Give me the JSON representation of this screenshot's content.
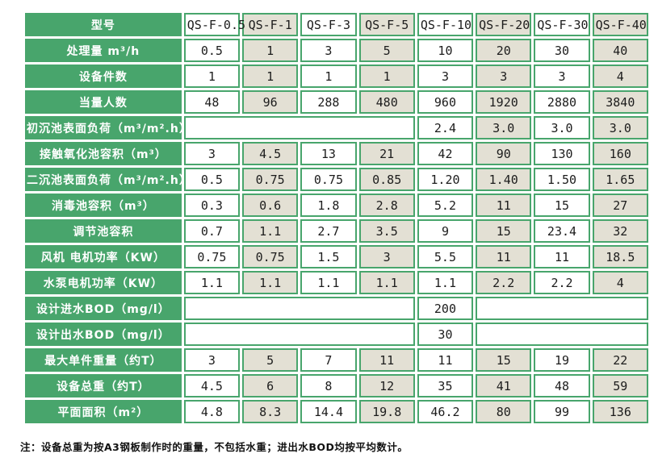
{
  "colors": {
    "green": "#48A56C",
    "beige": "#E3E0D4",
    "cell_white": "#FFFFFF",
    "value_text": "#1C1C1C"
  },
  "chart_data": {
    "type": "table",
    "corner_label": "型号",
    "columns": [
      "QS-F-0.5",
      "QS-F-1",
      "QS-F-3",
      "QS-F-5",
      "QS-F-10",
      "QS-F-20",
      "QS-F-30",
      "QS-F-40"
    ],
    "rows": [
      {
        "label": "处理量 m³/h",
        "cells": [
          [
            "0.5"
          ],
          [
            "1"
          ],
          [
            "3"
          ],
          [
            "5"
          ],
          [
            "10"
          ],
          [
            "20"
          ],
          [
            "30"
          ],
          [
            "40"
          ]
        ]
      },
      {
        "label": "设备件数",
        "cells": [
          [
            "1"
          ],
          [
            "1"
          ],
          [
            "1"
          ],
          [
            "1"
          ],
          [
            "3"
          ],
          [
            "3"
          ],
          [
            "3"
          ],
          [
            "4"
          ]
        ]
      },
      {
        "label": "当量人数",
        "cells": [
          [
            "48"
          ],
          [
            "96"
          ],
          [
            "288"
          ],
          [
            "480"
          ],
          [
            "960"
          ],
          [
            "1920"
          ],
          [
            "2880"
          ],
          [
            "3840"
          ]
        ]
      },
      {
        "label": "初沉池表面负荷（m³/m².h）",
        "cells": [
          [
            "",
            4
          ],
          [
            "2.4"
          ],
          [
            "3.0"
          ],
          [
            "3.0"
          ],
          [
            "3.0"
          ]
        ]
      },
      {
        "label": "接触氧化池容积（m³）",
        "cells": [
          [
            "3"
          ],
          [
            "4.5"
          ],
          [
            "13"
          ],
          [
            "21"
          ],
          [
            "42"
          ],
          [
            "90"
          ],
          [
            "130"
          ],
          [
            "160"
          ]
        ]
      },
      {
        "label": "二沉池表面负荷（m³/m².h）",
        "cells": [
          [
            "0.5"
          ],
          [
            "0.75"
          ],
          [
            "0.75"
          ],
          [
            "0.85"
          ],
          [
            "1.20"
          ],
          [
            "1.40"
          ],
          [
            "1.50"
          ],
          [
            "1.65"
          ]
        ]
      },
      {
        "label": "消毒池容积（m³）",
        "cells": [
          [
            "0.3"
          ],
          [
            "0.6"
          ],
          [
            "1.8"
          ],
          [
            "2.8"
          ],
          [
            "5.2"
          ],
          [
            "11"
          ],
          [
            "15"
          ],
          [
            "27"
          ]
        ]
      },
      {
        "label": "调节池容积",
        "cells": [
          [
            "0.7"
          ],
          [
            "1.1"
          ],
          [
            "2.7"
          ],
          [
            "3.5"
          ],
          [
            "9"
          ],
          [
            "15"
          ],
          [
            "23.4"
          ],
          [
            "32"
          ]
        ]
      },
      {
        "label": "风机 电机功率（KW）",
        "cells": [
          [
            "0.75"
          ],
          [
            "0.75"
          ],
          [
            "1.5"
          ],
          [
            "3"
          ],
          [
            "5.5"
          ],
          [
            "11"
          ],
          [
            "11"
          ],
          [
            "18.5"
          ]
        ]
      },
      {
        "label": "水泵电机功率（KW）",
        "cells": [
          [
            "1.1"
          ],
          [
            "1.1"
          ],
          [
            "1.1"
          ],
          [
            "1.1"
          ],
          [
            "1.1"
          ],
          [
            "2.2"
          ],
          [
            "2.2"
          ],
          [
            "4"
          ]
        ]
      },
      {
        "label": "设计进水BOD（mg/l）",
        "cells": [
          [
            "",
            4
          ],
          [
            "200"
          ],
          [
            "",
            3
          ]
        ]
      },
      {
        "label": "设计出水BOD（mg/l）",
        "cells": [
          [
            "",
            4
          ],
          [
            "30"
          ],
          [
            "",
            3
          ]
        ]
      },
      {
        "label": "最大单件重量（约T）",
        "cells": [
          [
            "3"
          ],
          [
            "5"
          ],
          [
            "7"
          ],
          [
            "11"
          ],
          [
            "11"
          ],
          [
            "15"
          ],
          [
            "19"
          ],
          [
            "22"
          ]
        ]
      },
      {
        "label": "设备总重（约T）",
        "cells": [
          [
            "4.5"
          ],
          [
            "6"
          ],
          [
            "8"
          ],
          [
            "12"
          ],
          [
            "35"
          ],
          [
            "41"
          ],
          [
            "48"
          ],
          [
            "59"
          ]
        ]
      },
      {
        "label": "平面面积（m²）",
        "cells": [
          [
            "4.8"
          ],
          [
            "8.3"
          ],
          [
            "14.4"
          ],
          [
            "19.8"
          ],
          [
            "46.2"
          ],
          [
            "80"
          ],
          [
            "99"
          ],
          [
            "136"
          ]
        ]
      }
    ]
  },
  "note": "注：设备总重为按A3钢板制作时的重量，不包括水重；进出水BOD均按平均数计。"
}
